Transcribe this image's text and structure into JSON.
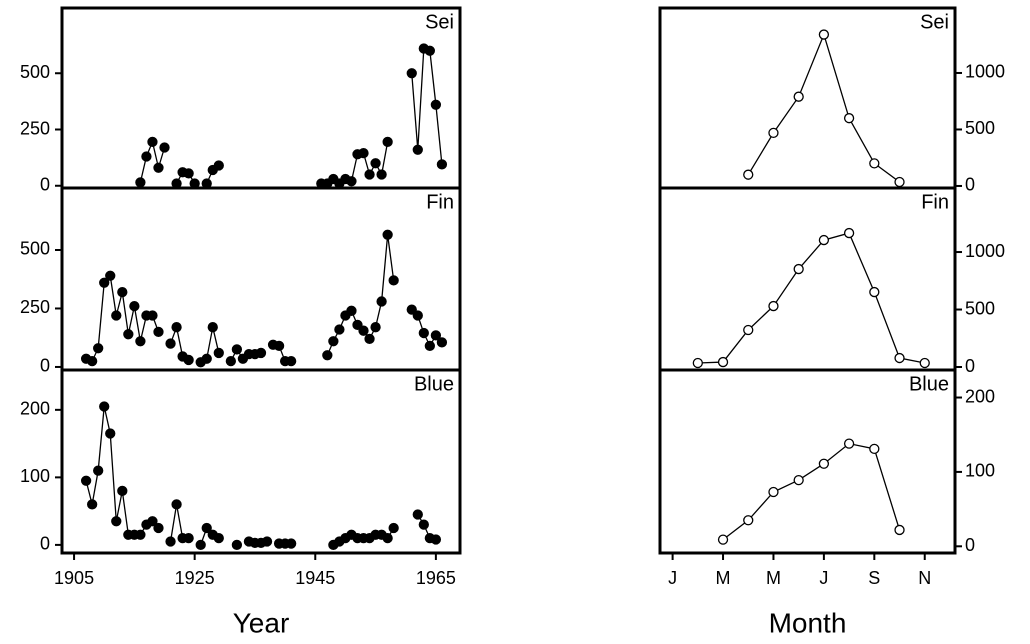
{
  "chart_data": [
    {
      "type": "line",
      "title": "Sei",
      "markers": "filled",
      "color": "#000000",
      "x": [
        1907,
        1908,
        1909,
        1910,
        1911,
        1912,
        1913,
        1914,
        1915,
        1916,
        1917,
        1918,
        1919,
        1920,
        1921,
        1922,
        1923,
        1924,
        1925,
        1926,
        1927,
        1928,
        1929,
        1930,
        1931,
        1932,
        1933,
        1934,
        1935,
        1936,
        1937,
        1938,
        1939,
        1940,
        1941,
        1942,
        1943,
        1944,
        1945,
        1946,
        1947,
        1948,
        1949,
        1950,
        1951,
        1952,
        1953,
        1954,
        1955,
        1956,
        1957,
        1958,
        1959,
        1960,
        1961,
        1962,
        1963,
        1964,
        1965,
        1966
      ],
      "values": [
        null,
        null,
        null,
        null,
        null,
        null,
        null,
        null,
        null,
        15,
        130,
        195,
        80,
        170,
        null,
        10,
        60,
        55,
        10,
        null,
        10,
        70,
        90,
        null,
        null,
        null,
        null,
        null,
        null,
        null,
        null,
        null,
        null,
        null,
        null,
        null,
        null,
        null,
        null,
        10,
        10,
        30,
        10,
        30,
        20,
        140,
        145,
        50,
        100,
        50,
        195,
        null,
        null,
        null,
        500,
        160,
        610,
        600,
        360,
        95
      ],
      "xlim": [
        1903,
        1969
      ],
      "ylim": [
        -10,
        790
      ],
      "yticks": [
        0,
        250,
        500
      ]
    },
    {
      "type": "line",
      "title": "Fin",
      "markers": "filled",
      "color": "#000000",
      "x": [
        1907,
        1908,
        1909,
        1910,
        1911,
        1912,
        1913,
        1914,
        1915,
        1916,
        1917,
        1918,
        1919,
        1920,
        1921,
        1922,
        1923,
        1924,
        1925,
        1926,
        1927,
        1928,
        1929,
        1930,
        1931,
        1932,
        1933,
        1934,
        1935,
        1936,
        1937,
        1938,
        1939,
        1940,
        1941,
        1942,
        1943,
        1944,
        1945,
        1946,
        1947,
        1948,
        1949,
        1950,
        1951,
        1952,
        1953,
        1954,
        1955,
        1956,
        1957,
        1958,
        1959,
        1960,
        1961,
        1962,
        1963,
        1964,
        1965,
        1966
      ],
      "values": [
        35,
        25,
        80,
        360,
        390,
        220,
        320,
        140,
        260,
        110,
        220,
        220,
        150,
        null,
        100,
        170,
        45,
        30,
        null,
        20,
        35,
        170,
        60,
        null,
        25,
        75,
        35,
        55,
        55,
        60,
        null,
        95,
        90,
        25,
        25,
        null,
        null,
        null,
        null,
        null,
        50,
        110,
        160,
        220,
        240,
        180,
        155,
        120,
        170,
        280,
        565,
        370,
        null,
        null,
        245,
        220,
        145,
        90,
        135,
        105
      ],
      "xlim": [
        1903,
        1969
      ],
      "ylim": [
        -13,
        765
      ],
      "yticks": [
        0,
        250,
        500
      ]
    },
    {
      "type": "line",
      "title": "Blue",
      "markers": "filled",
      "color": "#000000",
      "x": [
        1907,
        1908,
        1909,
        1910,
        1911,
        1912,
        1913,
        1914,
        1915,
        1916,
        1917,
        1918,
        1919,
        1920,
        1921,
        1922,
        1923,
        1924,
        1925,
        1926,
        1927,
        1928,
        1929,
        1930,
        1931,
        1932,
        1933,
        1934,
        1935,
        1936,
        1937,
        1938,
        1939,
        1940,
        1941,
        1942,
        1943,
        1944,
        1945,
        1946,
        1947,
        1948,
        1949,
        1950,
        1951,
        1952,
        1953,
        1954,
        1955,
        1956,
        1957,
        1958,
        1959,
        1960,
        1961,
        1962,
        1963,
        1964,
        1965,
        1966
      ],
      "values": [
        95,
        60,
        110,
        205,
        165,
        35,
        80,
        15,
        15,
        15,
        30,
        35,
        25,
        null,
        5,
        60,
        10,
        10,
        null,
        0,
        25,
        15,
        10,
        null,
        null,
        0,
        null,
        5,
        3,
        3,
        5,
        null,
        2,
        2,
        2,
        null,
        null,
        null,
        null,
        null,
        null,
        0,
        5,
        10,
        15,
        10,
        10,
        10,
        15,
        15,
        10,
        25,
        null,
        null,
        null,
        45,
        30,
        10,
        8,
        null
      ],
      "xlim": [
        1903,
        1969
      ],
      "ylim": [
        -12,
        259
      ],
      "yticks": [
        0,
        100,
        200
      ],
      "xticks": [
        1905,
        1925,
        1945,
        1965
      ],
      "xlabel": "Year"
    },
    {
      "type": "line",
      "title": "Sei",
      "markers": "open",
      "color": "#000000",
      "x": [
        4,
        5,
        6,
        7,
        8,
        9,
        10
      ],
      "values": [
        100,
        470,
        790,
        1340,
        600,
        200,
        35
      ],
      "xlim": [
        0.5,
        12.2
      ],
      "ylim": [
        -18,
        1575
      ],
      "yticks": [
        0,
        500,
        1000
      ]
    },
    {
      "type": "line",
      "title": "Fin",
      "markers": "open",
      "color": "#000000",
      "x": [
        2,
        3,
        4,
        5,
        6,
        7,
        8,
        9,
        10,
        11
      ],
      "values": [
        35,
        43,
        322,
        530,
        852,
        1104,
        1165,
        652,
        78,
        35
      ],
      "xlim": [
        0.5,
        12.2
      ],
      "ylim": [
        -26,
        1557
      ],
      "yticks": [
        0,
        500,
        1000
      ]
    },
    {
      "type": "line",
      "title": "Blue",
      "markers": "open",
      "color": "#000000",
      "x": [
        3,
        4,
        5,
        6,
        7,
        8,
        9,
        10
      ],
      "values": [
        9,
        35,
        73,
        89,
        111,
        138,
        131,
        22
      ],
      "xlim": [
        0.5,
        12.2
      ],
      "ylim": [
        -9,
        237
      ],
      "yticks": [
        0,
        100,
        200
      ],
      "xticks": [
        {
          "value": 1,
          "label": "J"
        },
        {
          "value": 3,
          "label": "M"
        },
        {
          "value": 5,
          "label": "M"
        },
        {
          "value": 7,
          "label": "J"
        },
        {
          "value": 9,
          "label": "S"
        },
        {
          "value": 11,
          "label": "N"
        }
      ],
      "xlabel": "Month"
    }
  ]
}
